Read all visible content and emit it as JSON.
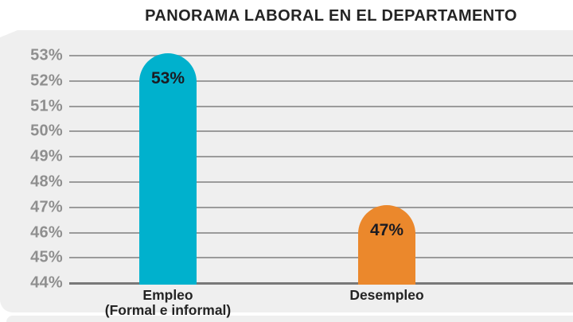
{
  "chart_data": {
    "type": "bar",
    "title": "PANORAMA LABORAL EN EL DEPARTAMENTO",
    "categories": [
      {
        "label": "Empleo",
        "sublabel": "(Formal e informal)"
      },
      {
        "label": "Desempleo",
        "sublabel": ""
      }
    ],
    "values": [
      53,
      47
    ],
    "value_labels": [
      "53%",
      "47%"
    ],
    "series_colors": [
      "#00b1cd",
      "#eb882c"
    ],
    "ylim": [
      44,
      53
    ],
    "yticks": [
      53,
      52,
      51,
      50,
      49,
      48,
      47,
      46,
      45,
      44
    ],
    "ytick_labels": [
      "53%",
      "52%",
      "51%",
      "50%",
      "49%",
      "48%",
      "47%",
      "46%",
      "45%",
      "44%"
    ],
    "grid": true,
    "legend": false,
    "xlabel": "",
    "ylabel": ""
  },
  "colors": {
    "page_bg": "#ffffff",
    "panel_bg": "#efefef",
    "grid_line": "#9b9b9b",
    "baseline": "#787878",
    "tick_label": "#8f8f8f",
    "title_text": "#242424",
    "value_label": "#1b1b22",
    "category_label": "#242424"
  }
}
